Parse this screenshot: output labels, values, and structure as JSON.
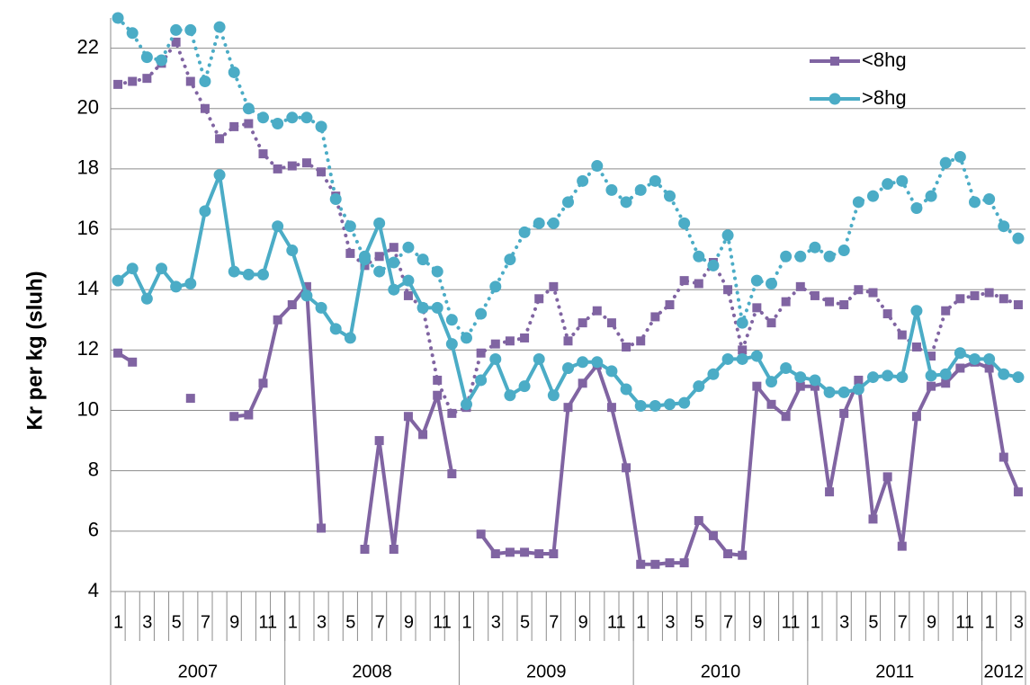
{
  "chart_data": {
    "type": "line",
    "y_label": "Kr per kg (sluh)",
    "categories": [
      "1",
      null,
      "3",
      null,
      "5",
      null,
      "7",
      null,
      "9",
      null,
      "11",
      null,
      "1",
      null,
      "3",
      null,
      "5",
      null,
      "7",
      null,
      "9",
      null,
      "11",
      null,
      "1",
      null,
      "3",
      null,
      "5",
      null,
      "7",
      null,
      "9",
      null,
      "11",
      null,
      "1",
      null,
      "3",
      null,
      "5",
      null,
      "7",
      null,
      "9",
      null,
      "11",
      null,
      "1",
      null,
      "3",
      null,
      "5",
      null,
      "7",
      null,
      "9",
      null,
      "11",
      null,
      "1",
      null,
      "3"
    ],
    "years": [
      "2007",
      "2008",
      "2009",
      "2010",
      "2011",
      "2012"
    ],
    "ylim": [
      4,
      23
    ],
    "yticks": [
      4,
      6,
      8,
      10,
      12,
      14,
      16,
      18,
      20,
      22
    ],
    "grid": true,
    "legend": "upper right",
    "series": [
      {
        "name": "<8hg",
        "color": "#8064a2",
        "marker": "square",
        "values": [
          11.9,
          11.6,
          null,
          null,
          null,
          10.4,
          null,
          null,
          9.8,
          9.85,
          10.9,
          13.0,
          13.5,
          14.1,
          6.1,
          null,
          null,
          5.4,
          9.0,
          5.4,
          9.8,
          9.2,
          10.5,
          7.9,
          null,
          5.9,
          5.25,
          5.3,
          5.3,
          5.25,
          5.25,
          10.1,
          10.9,
          11.5,
          10.1,
          8.1,
          4.9,
          4.9,
          4.95,
          4.95,
          6.35,
          5.85,
          5.25,
          5.2,
          10.8,
          10.2,
          9.8,
          10.8,
          10.8,
          7.3,
          9.9,
          11.0,
          6.4,
          7.8,
          5.5,
          9.8,
          10.8,
          10.9,
          11.4,
          11.6,
          11.4,
          8.45,
          7.3
        ],
        "dotted_values": [
          20.8,
          20.9,
          21.0,
          21.5,
          22.2,
          20.9,
          20.0,
          19.0,
          19.4,
          19.5,
          18.5,
          18.0,
          18.1,
          18.2,
          17.9,
          17.1,
          15.2,
          14.8,
          15.1,
          15.4,
          13.8,
          13.4,
          11.0,
          9.9,
          10.1,
          11.9,
          12.2,
          12.3,
          12.4,
          13.7,
          14.1,
          12.3,
          12.9,
          13.3,
          12.9,
          12.1,
          12.3,
          13.1,
          13.5,
          14.3,
          14.2,
          14.9,
          14.0,
          12.0,
          13.4,
          12.9,
          13.6,
          14.1,
          13.8,
          13.6,
          13.5,
          14.0,
          13.9,
          13.2,
          12.5,
          12.1,
          11.8,
          13.3,
          13.7,
          13.8,
          13.9,
          13.7,
          13.5
        ]
      },
      {
        "name": ">8hg",
        "color": "#4bacc6",
        "marker": "circle",
        "values": [
          14.3,
          14.7,
          13.7,
          14.7,
          14.1,
          14.2,
          16.6,
          17.8,
          14.6,
          14.5,
          14.5,
          16.1,
          15.3,
          13.8,
          13.4,
          12.7,
          12.4,
          15.1,
          16.2,
          14.0,
          14.3,
          13.4,
          13.4,
          12.2,
          10.2,
          11.0,
          11.7,
          10.5,
          10.8,
          11.7,
          10.5,
          11.4,
          11.6,
          11.6,
          11.3,
          10.7,
          10.15,
          10.15,
          10.2,
          10.25,
          10.8,
          11.2,
          11.7,
          11.7,
          11.8,
          10.95,
          11.4,
          11.1,
          11.0,
          10.6,
          10.6,
          10.7,
          11.1,
          11.15,
          11.1,
          13.3,
          11.15,
          11.2,
          11.9,
          11.7,
          11.7,
          11.2,
          11.1
        ],
        "dotted_values": [
          23.0,
          22.5,
          21.7,
          21.6,
          22.6,
          22.6,
          20.9,
          22.7,
          21.2,
          20.0,
          19.7,
          19.5,
          19.7,
          19.7,
          19.4,
          17.0,
          16.1,
          15.0,
          14.6,
          14.9,
          15.4,
          15.0,
          14.6,
          13.0,
          12.4,
          13.2,
          14.1,
          15.0,
          15.9,
          16.2,
          16.2,
          16.9,
          17.6,
          18.1,
          17.3,
          16.9,
          17.3,
          17.6,
          17.1,
          16.2,
          15.1,
          14.8,
          15.8,
          12.9,
          14.3,
          14.2,
          15.1,
          15.1,
          15.4,
          15.1,
          15.3,
          16.9,
          17.1,
          17.5,
          17.6,
          16.7,
          17.1,
          18.2,
          18.4,
          16.9,
          17.0,
          16.1,
          15.7
        ]
      }
    ]
  }
}
